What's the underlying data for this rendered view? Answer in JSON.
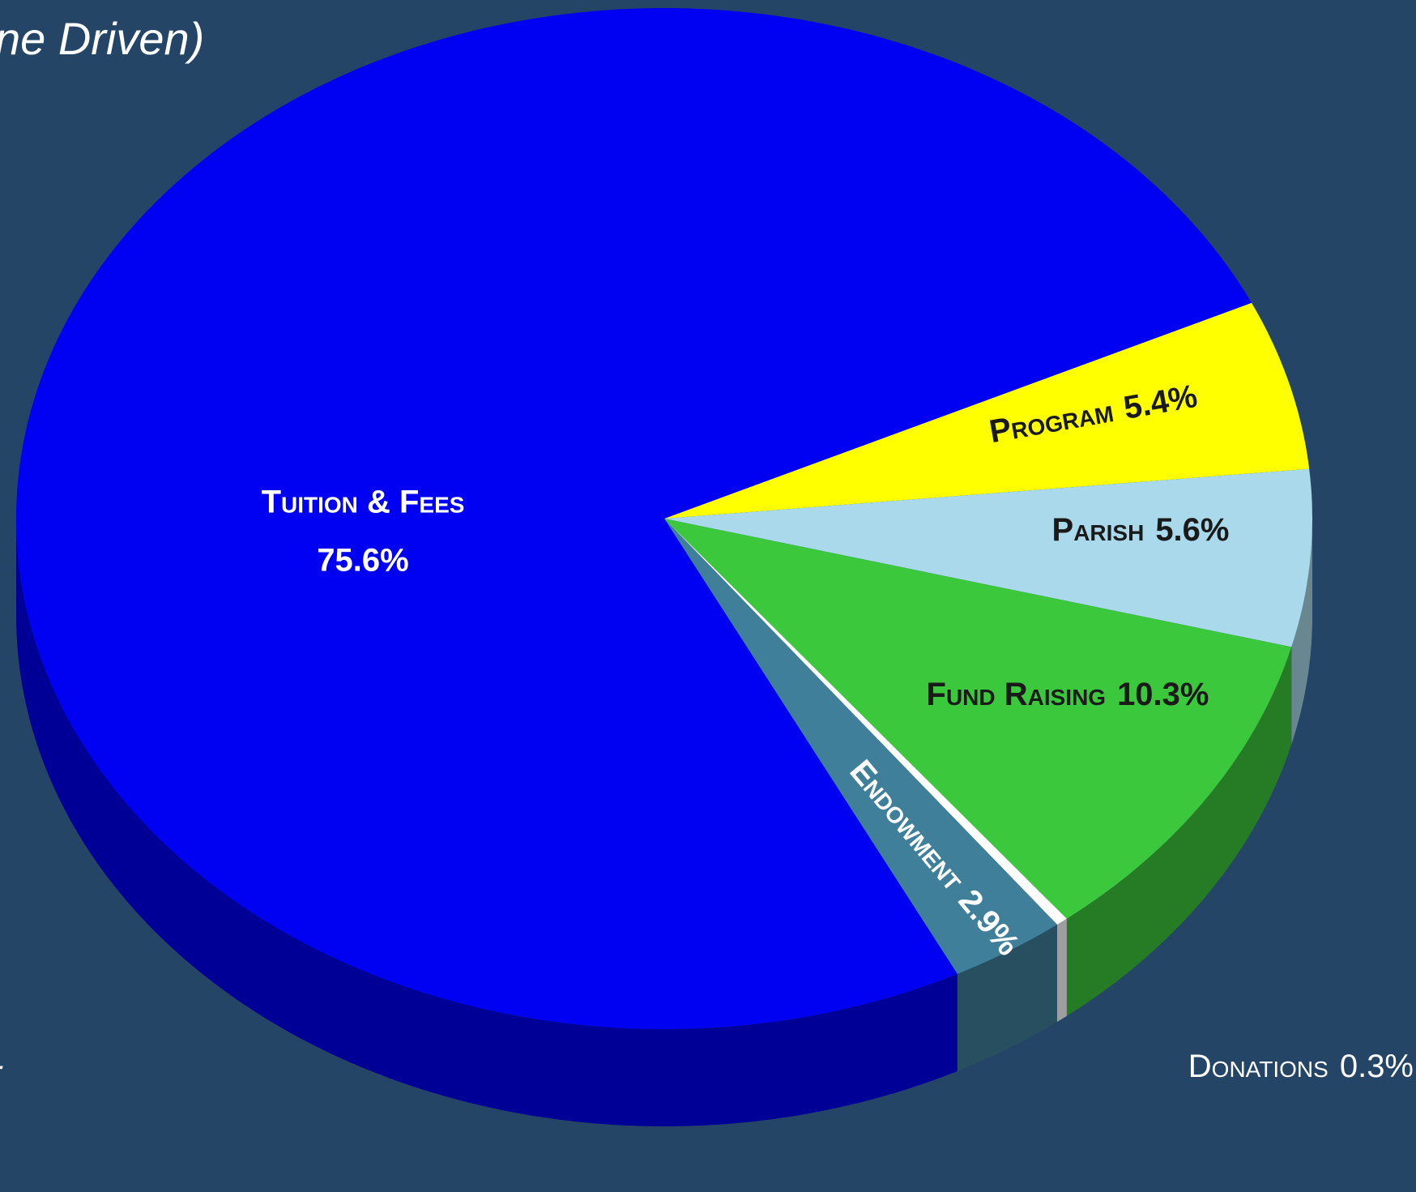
{
  "chart_data": {
    "type": "pie",
    "title": "ne Driven)",
    "annotation": "t",
    "categories": [
      "Program",
      "Parish",
      "Fund Raising",
      "Donations",
      "Endowment",
      "Tuition & Fees"
    ],
    "values": [
      5.4,
      5.6,
      10.3,
      0.3,
      2.9,
      75.6
    ],
    "value_labels": [
      "5.4%",
      "5.6%",
      "10.3%",
      "0.3%",
      "2.9%",
      "75.6%"
    ],
    "colors": [
      "#ffff00",
      "#a9d9ea",
      "#3cc83c",
      "#ffffff",
      "#3f7f9a",
      "#0000f2"
    ]
  }
}
